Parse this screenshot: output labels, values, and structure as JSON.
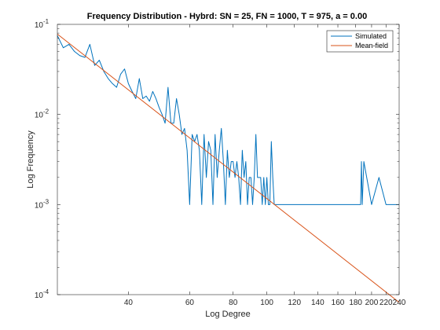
{
  "chart_data": {
    "type": "line",
    "title": "Frequency Distribution - Hybrd: SN = 25, FN = 1000, T = 975, a = 0.00",
    "xlabel": "Log Degree",
    "ylabel": "Log Frequency",
    "xscale": "log",
    "yscale": "log",
    "xlim": [
      25,
      240
    ],
    "ylim": [
      0.0001,
      0.1
    ],
    "x_ticks": [
      40,
      60,
      80,
      100,
      120,
      140,
      160,
      180,
      200,
      220,
      240
    ],
    "y_ticks": [
      {
        "value": 0.1,
        "base": "10",
        "exp": "-1"
      },
      {
        "value": 0.01,
        "base": "10",
        "exp": "-2"
      },
      {
        "value": 0.001,
        "base": "10",
        "exp": "-3"
      },
      {
        "value": 0.0001,
        "base": "10",
        "exp": "-4"
      }
    ],
    "grid": false,
    "legend_position": "top-right",
    "series": [
      {
        "name": "Simulated",
        "color": "#0072BD",
        "x": [
          25,
          26,
          27,
          28,
          29,
          30,
          31,
          32,
          33,
          34,
          35,
          36,
          37,
          38,
          39,
          40,
          41,
          42,
          43,
          44,
          45,
          46,
          47,
          48,
          49,
          50,
          51,
          52,
          53,
          54,
          55,
          56,
          57,
          58,
          59,
          60,
          61,
          62,
          63,
          64,
          65,
          66,
          67,
          68,
          69,
          70,
          71,
          72,
          73,
          74,
          75,
          76,
          77,
          78,
          79,
          80,
          81,
          82,
          83,
          84,
          85,
          86,
          87,
          88,
          89,
          90,
          91,
          92,
          93,
          94,
          95,
          96,
          97,
          98,
          99,
          100,
          101,
          102,
          103,
          104,
          105,
          106,
          110,
          115,
          120,
          130,
          140,
          150,
          160,
          170,
          180,
          186,
          187,
          188,
          190,
          200,
          210,
          220,
          240
        ],
        "y": [
          0.075,
          0.055,
          0.06,
          0.05,
          0.045,
          0.043,
          0.06,
          0.035,
          0.04,
          0.03,
          0.025,
          0.022,
          0.02,
          0.028,
          0.032,
          0.022,
          0.018,
          0.015,
          0.025,
          0.015,
          0.016,
          0.014,
          0.018,
          0.015,
          0.012,
          0.01,
          0.008,
          0.02,
          0.008,
          0.008,
          0.015,
          0.01,
          0.006,
          0.007,
          0.004,
          0.001,
          0.006,
          0.005,
          0.006,
          0.004,
          0.001,
          0.006,
          0.002,
          0.005,
          0.004,
          0.001,
          0.006,
          0.002,
          0.004,
          0.007,
          0.003,
          0.001,
          0.004,
          0.002,
          0.003,
          0.003,
          0.002,
          0.003,
          0.002,
          0.001,
          0.004,
          0.002,
          0.003,
          0.001,
          0.002,
          0.002,
          0.001,
          0.002,
          0.006,
          0.002,
          0.002,
          0.002,
          0.001,
          0.002,
          0.001,
          0.002,
          0.001,
          0.001,
          0.005,
          0.002,
          0.001,
          0.001,
          0.001,
          0.001,
          0.001,
          0.001,
          0.001,
          0.001,
          0.001,
          0.001,
          0.001,
          0.001,
          0.003,
          0.001,
          0.003,
          0.001,
          0.002,
          0.001,
          0.001
        ]
      },
      {
        "name": "Mean-field",
        "color": "#D95319",
        "x": [
          25,
          240
        ],
        "y": [
          0.078,
          8.2e-05
        ]
      }
    ]
  }
}
